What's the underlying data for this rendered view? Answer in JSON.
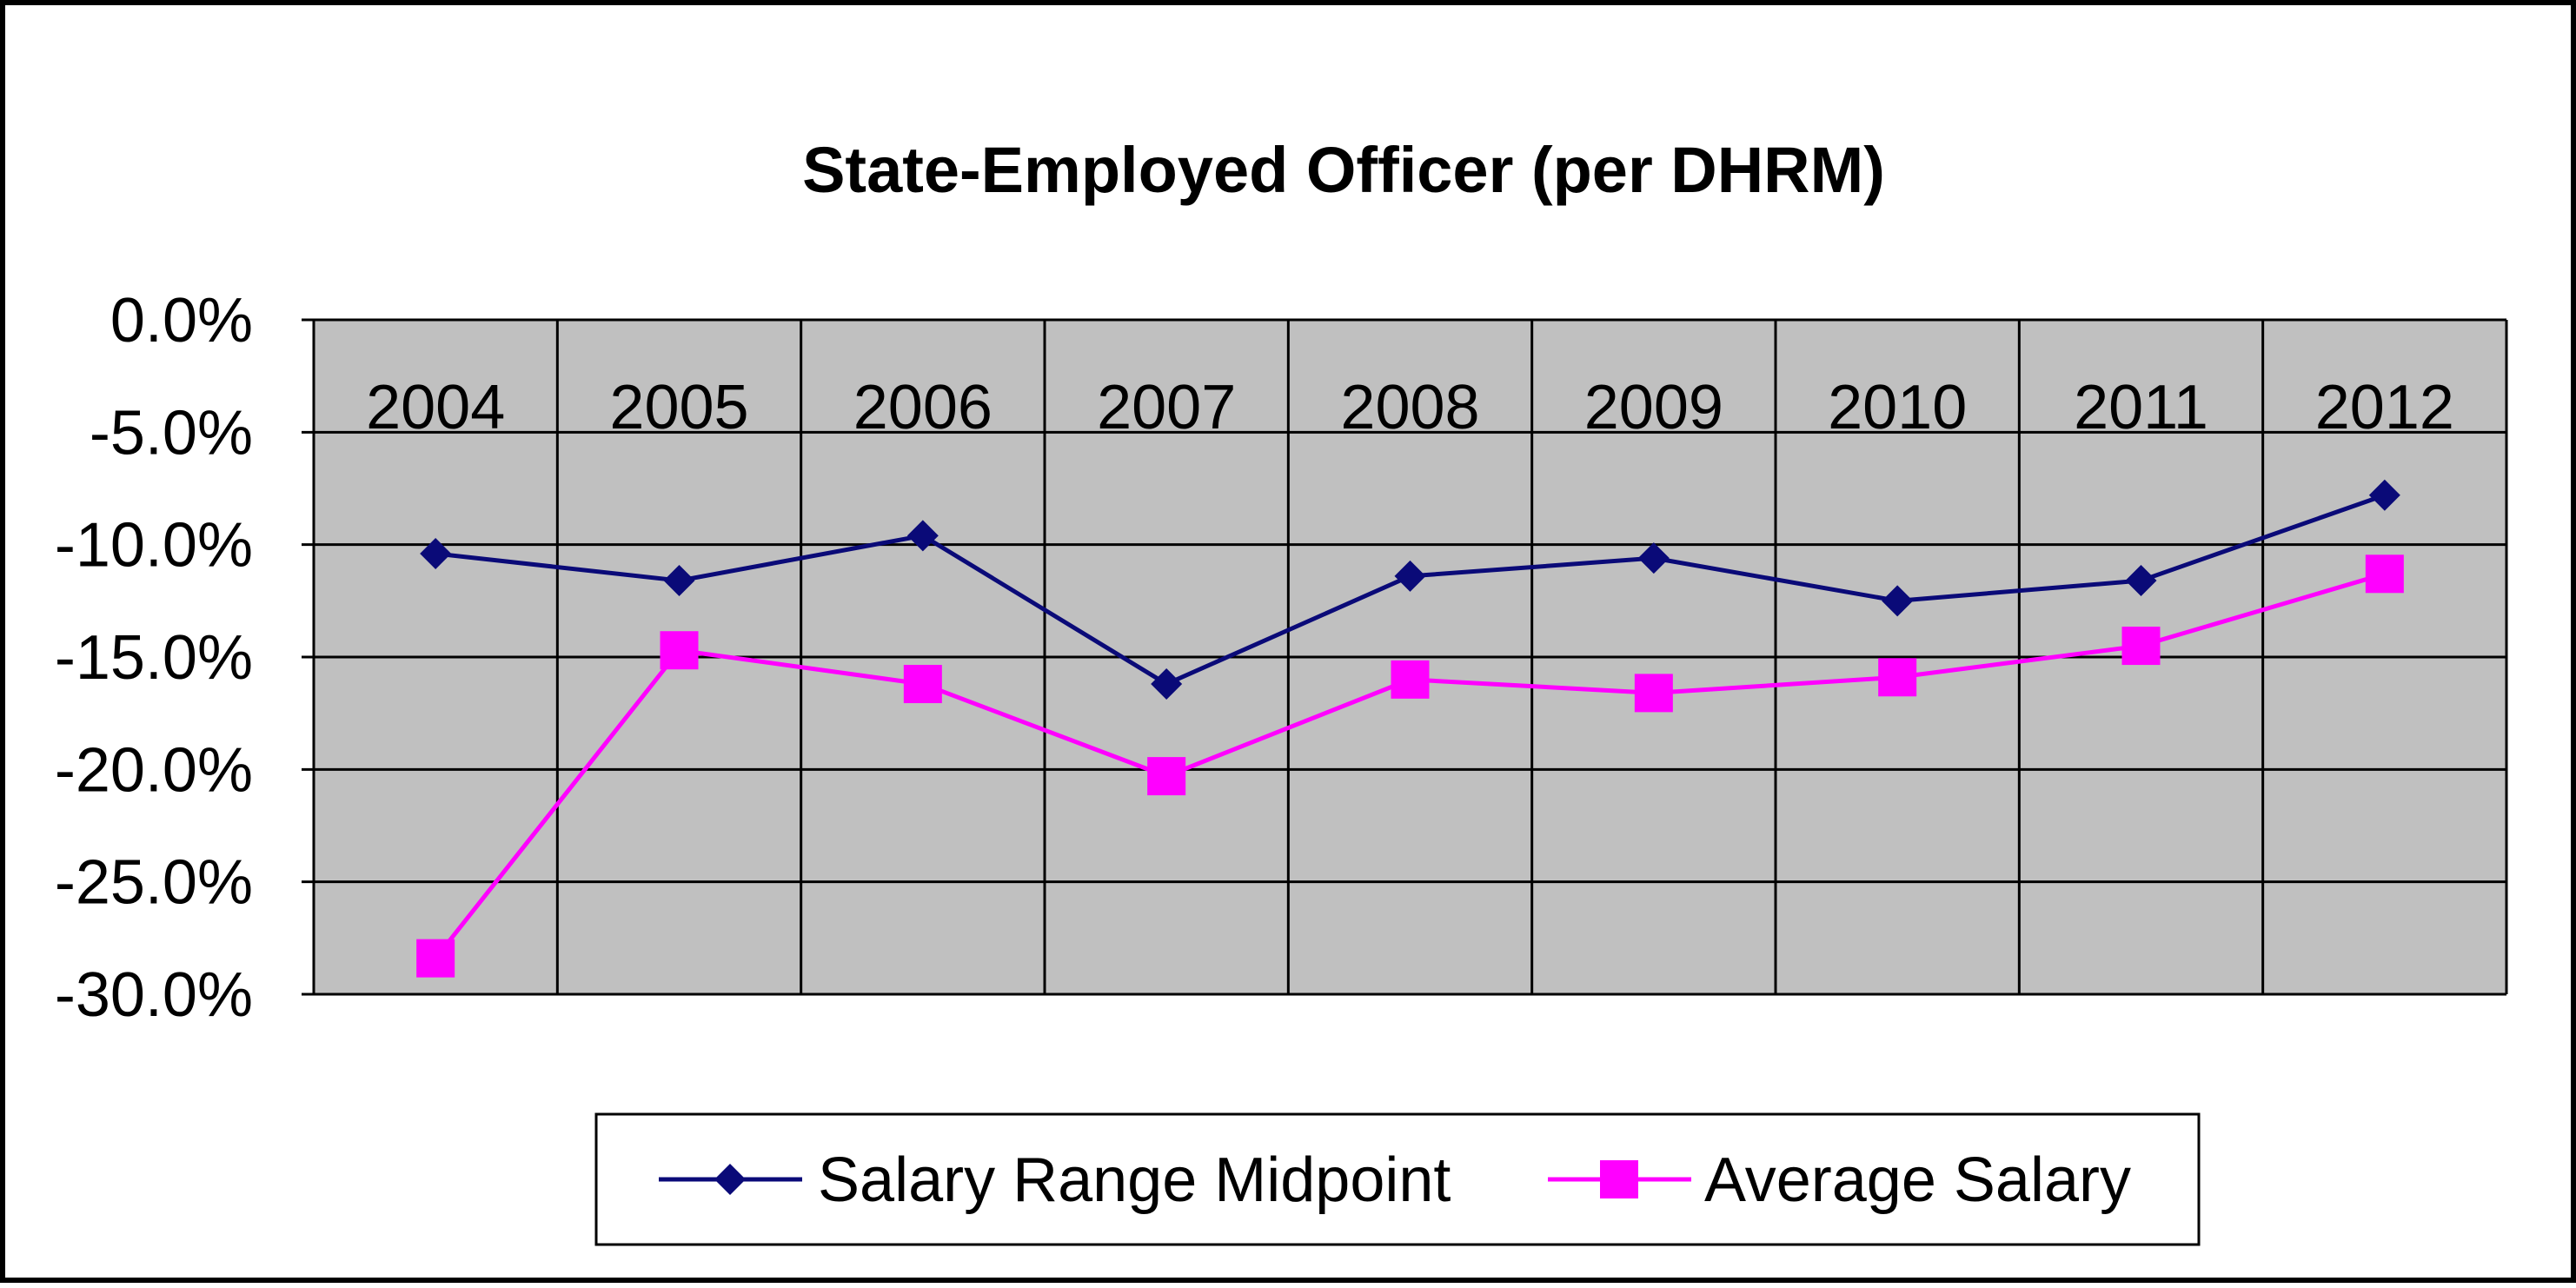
{
  "chart_data": {
    "type": "line",
    "title": "State-Employed Officer (per DHRM)",
    "xlabel": "",
    "ylabel": "",
    "categories": [
      "2004",
      "2005",
      "2006",
      "2007",
      "2008",
      "2009",
      "2010",
      "2011",
      "2012"
    ],
    "y_ticks": [
      "0.0%",
      "-5.0%",
      "-10.0%",
      "-15.0%",
      "-20.0%",
      "-25.0%",
      "-30.0%"
    ],
    "ylim": [
      -30,
      0
    ],
    "grid": true,
    "x_labels_position": "top",
    "legend_position": "bottom",
    "series": [
      {
        "name": "Salary Range Midpoint",
        "values": [
          -10.4,
          -11.6,
          -9.6,
          -16.2,
          -11.4,
          -10.6,
          -12.5,
          -11.6,
          -7.8
        ],
        "color": "#0a0a78",
        "marker": "diamond"
      },
      {
        "name": "Average Salary",
        "values": [
          -28.4,
          -14.7,
          -16.2,
          -20.3,
          -16.0,
          -16.6,
          -15.9,
          -14.5,
          -11.3
        ],
        "color": "#ff00ff",
        "marker": "square"
      }
    ]
  }
}
